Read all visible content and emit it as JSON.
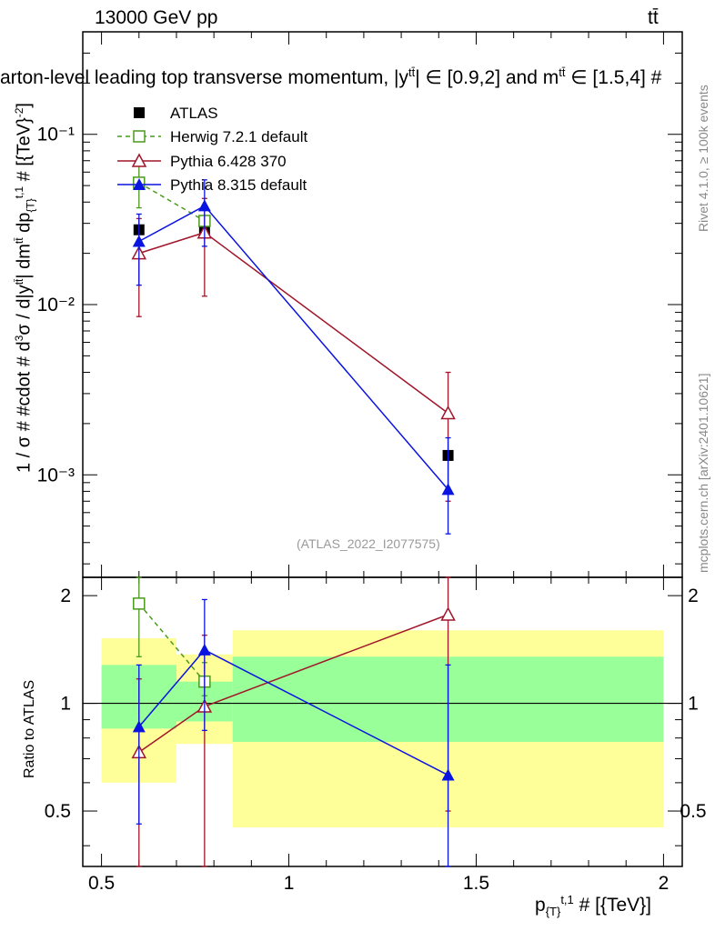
{
  "header": {
    "energy_label": "13000 GeV pp",
    "process_label": "tt̄"
  },
  "title": "arton-level leading top transverse momentum, |y",
  "title_superscript": "tt̄",
  "title_rest": "| ∈ [0.9,2] and m",
  "title_superscript2": "tt̄",
  "title_end": " ∈ [1.5,4] #",
  "side_labels": {
    "rivet": "Rivet 4.1.0, ≥ 100k events",
    "mcplots": "mcplots.cern.ch [arXiv:2401.10621]"
  },
  "analysis_id": "(ATLAS_2022_I2077575)",
  "colors": {
    "atlas": "#000000",
    "herwig": "#4a9a1c",
    "pythia6": "#a0162a",
    "pythia8": "#0a14e0",
    "band_yellow": "#ffff99",
    "band_green": "#99ff99"
  },
  "chart_data": [
    {
      "type": "scatter",
      "panel": "main",
      "title": "parton-level leading top transverse momentum",
      "ylabel": "1 / σ # #cdot # d³σ / d|y^tt̄| dm^tt̄ dp_{T}^{t,1} # [{TeV}⁻²]",
      "yscale": "log",
      "xlim": [
        0.45,
        2.05
      ],
      "ylim": [
        0.00025,
        0.4
      ],
      "ytick_labels": [
        "10⁻³",
        "10⁻²",
        "10⁻¹"
      ],
      "yticks": [
        0.001,
        0.01,
        0.1
      ],
      "legend_position": "top-left",
      "series": [
        {
          "name": "ATLAS",
          "marker": "filled-square",
          "x": [
            0.6,
            0.775,
            1.425
          ],
          "y": [
            0.0275,
            0.027,
            0.0013
          ],
          "yerr_lo": [
            0.0275,
            0.027,
            0.0013
          ],
          "yerr_hi": [
            0.0275,
            0.027,
            0.0013
          ]
        },
        {
          "name": "Herwig 7.2.1 default",
          "marker": "open-square",
          "line": "dashed",
          "x": [
            0.6,
            0.775
          ],
          "y": [
            0.052,
            0.031
          ],
          "yerr_lo": [
            0.037,
            0.026
          ],
          "yerr_hi": [
            0.069,
            0.036
          ]
        },
        {
          "name": "Pythia 6.428 370",
          "marker": "open-triangle",
          "line": "solid",
          "x": [
            0.6,
            0.775,
            1.425
          ],
          "y": [
            0.02,
            0.0265,
            0.0023
          ],
          "yerr_lo": [
            0.0085,
            0.0112,
            0.0007
          ],
          "yerr_hi": [
            0.032,
            0.042,
            0.004
          ]
        },
        {
          "name": "Pythia 8.315 default",
          "marker": "filled-triangle",
          "line": "solid",
          "x": [
            0.6,
            0.775,
            1.425
          ],
          "y": [
            0.0235,
            0.038,
            0.00082
          ],
          "yerr_lo": [
            0.013,
            0.022,
            0.00045
          ],
          "yerr_hi": [
            0.034,
            0.054,
            0.00165
          ]
        }
      ]
    },
    {
      "type": "scatter",
      "panel": "ratio",
      "ylabel": "Ratio to ATLAS",
      "xlabel": "p_{T}^{t,1} # [{TeV}]",
      "xlim": [
        0.45,
        2.05
      ],
      "ylim": [
        0.35,
        2.25
      ],
      "xticks": [
        0.5,
        1,
        1.5,
        2
      ],
      "xtick_labels": [
        "0.5",
        "1",
        "1.5",
        "2"
      ],
      "yticks": [
        0.5,
        1,
        2
      ],
      "ytick_labels": [
        "0.5",
        "1",
        "2"
      ],
      "bands": [
        {
          "x0": 0.5,
          "x1": 0.7,
          "yellow": [
            0.6,
            1.52
          ],
          "green": [
            0.85,
            1.28
          ]
        },
        {
          "x0": 0.7,
          "x1": 0.85,
          "yellow": [
            0.77,
            1.37
          ],
          "green": [
            0.89,
            1.15
          ]
        },
        {
          "x0": 0.85,
          "x1": 2.0,
          "yellow": [
            0.45,
            1.6
          ],
          "green": [
            0.78,
            1.35
          ]
        }
      ],
      "series": [
        {
          "name": "Herwig 7.2.1 default",
          "x": [
            0.6,
            0.775
          ],
          "y": [
            1.9,
            1.15
          ],
          "yerr_lo": [
            1.35,
            1.05
          ],
          "yerr_hi": [
            2.5,
            1.3
          ]
        },
        {
          "name": "Pythia 6.428 370",
          "x": [
            0.6,
            0.775,
            1.425
          ],
          "y": [
            0.73,
            0.98,
            1.77
          ],
          "yerr_lo": [
            0.3,
            0.34,
            0.5
          ],
          "yerr_hi": [
            1.17,
            1.55,
            3.1
          ]
        },
        {
          "name": "Pythia 8.315 default",
          "x": [
            0.6,
            0.775,
            1.425
          ],
          "y": [
            0.86,
            1.41,
            0.63
          ],
          "yerr_lo": [
            0.46,
            0.84,
            0.34
          ],
          "yerr_hi": [
            1.28,
            1.95,
            1.28
          ]
        }
      ]
    }
  ]
}
